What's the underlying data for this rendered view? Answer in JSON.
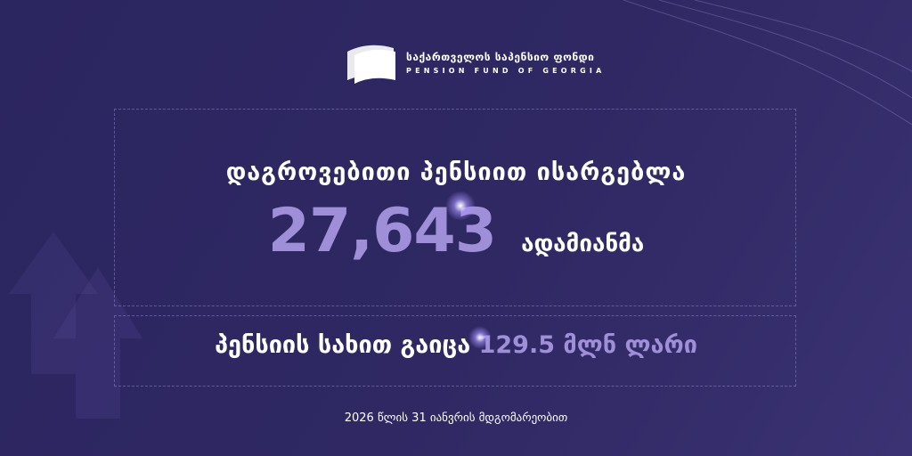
{
  "logo": {
    "name_ka": "საქართველოს საპენსიო ფონდი",
    "name_en": "PENSION FUND OF GEORGIA"
  },
  "main": {
    "headline": "დაგროვებითი პენსიით ისარგებლა",
    "count": "27,643",
    "count_unit": "ადამიანმა",
    "paid_label": "პენსიის სახით გაიცა",
    "paid_amount": "129.5 მლნ ლარი"
  },
  "footer": {
    "date": "2026 წლის 31 იანვრის მდგომარეობით"
  },
  "colors": {
    "background": "#2d2761",
    "accent": "#9f8fd8",
    "text": "#ffffff"
  }
}
